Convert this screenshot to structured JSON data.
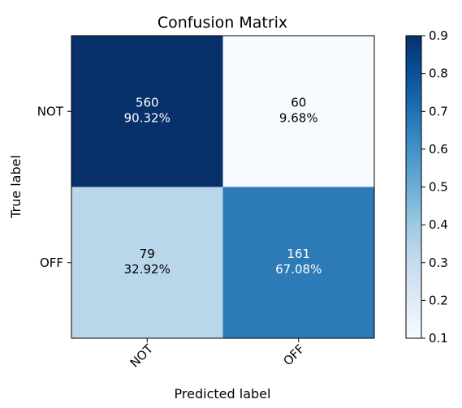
{
  "chart_data": {
    "type": "heatmap",
    "title": "Confusion Matrix",
    "xlabel": "Predicted label",
    "ylabel": "True label",
    "x_categories": [
      "NOT",
      "OFF"
    ],
    "y_categories": [
      "NOT",
      "OFF"
    ],
    "counts": [
      [
        560,
        60
      ],
      [
        79,
        161
      ]
    ],
    "percent_labels": [
      [
        "90.32%",
        "9.68%"
      ],
      [
        "32.92%",
        "67.08%"
      ]
    ],
    "normalized": [
      [
        0.9032,
        0.0968
      ],
      [
        0.3292,
        0.6708
      ]
    ],
    "colormap": "Blues",
    "colorbar": {
      "range": [
        0.1,
        0.9
      ],
      "ticks": [
        "0.1",
        "0.2",
        "0.3",
        "0.4",
        "0.5",
        "0.6",
        "0.7",
        "0.8",
        "0.9"
      ]
    },
    "cell_colors": [
      [
        "#08306b",
        "#f7fbff"
      ],
      [
        "#bad6eb",
        "#2c7bb6"
      ]
    ],
    "text_colors": [
      [
        "#ffffff",
        "#000000"
      ],
      [
        "#000000",
        "#ffffff"
      ]
    ],
    "grid": false
  }
}
